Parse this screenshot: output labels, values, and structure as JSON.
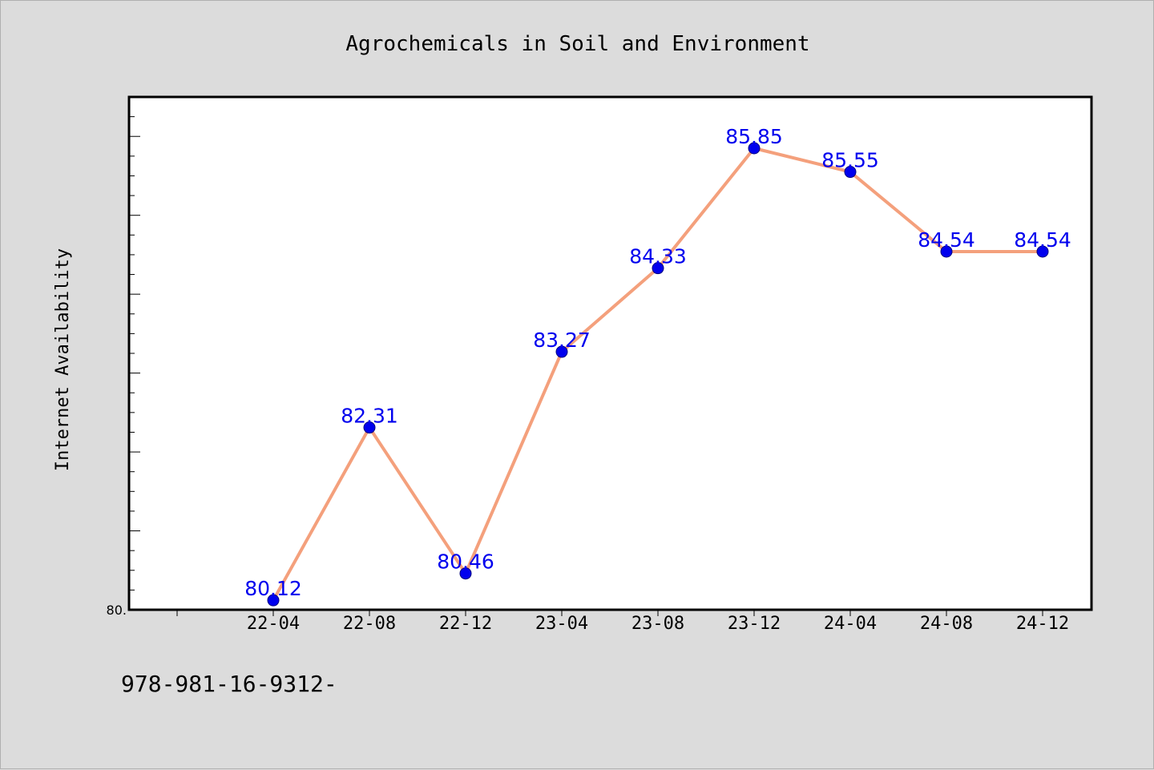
{
  "chart_data": {
    "type": "line",
    "title": "Agrochemicals in Soil and Environment",
    "xlabel": "",
    "ylabel": "Internet Availability",
    "categories": [
      "22-04",
      "22-08",
      "22-12",
      "23-04",
      "23-08",
      "23-12",
      "24-04",
      "24-08",
      "24-12"
    ],
    "series": [
      {
        "values": [
          80.12,
          82.31,
          80.46,
          83.27,
          84.33,
          85.85,
          85.55,
          84.54,
          84.54
        ],
        "data_labels": [
          "80.12",
          "82.31",
          "80.46",
          "83.27",
          "84.33",
          "85.85",
          "85.55",
          "84.54",
          "84.54"
        ]
      }
    ],
    "ylim": [
      80.0,
      86.5
    ],
    "y_tick_labels": [
      "80."
    ],
    "grid": false,
    "legend": "none",
    "colors": {
      "line": "#f4a07c",
      "marker": "#0000ee",
      "data_label": "#0000ee",
      "plot_background": "#ffffff",
      "page_background": "#dcdcdc"
    }
  },
  "footer_text": "978-981-16-9312-"
}
